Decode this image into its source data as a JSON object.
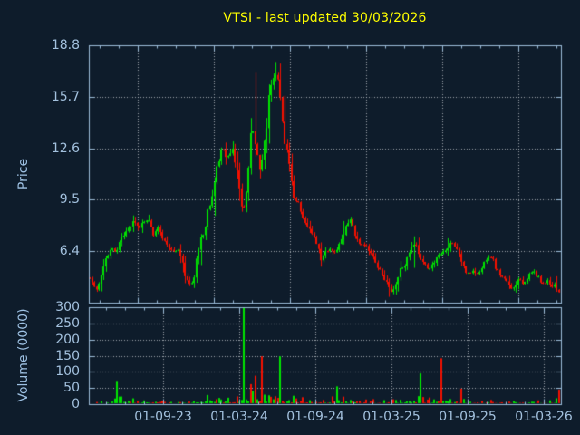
{
  "chart_data": {
    "type": "candlestick",
    "title": "VTSI - last updated 30/03/2026",
    "symbol": "VTSI",
    "last_updated": "30/03/2026",
    "legend_position": "none",
    "grid": true,
    "price_axis": {
      "label": "Price",
      "tick_labels": [
        "18.8",
        "15.7",
        "12.6",
        "9.5",
        "6.4"
      ],
      "ticks": [
        18.8,
        15.7,
        12.6,
        9.5,
        6.4
      ],
      "range": [
        3.3,
        18.8
      ],
      "gridline_prices": [
        15.7,
        12.6,
        9.5,
        6.4
      ]
    },
    "volume_axis": {
      "label": "Volume (0000)",
      "tick_labels": [
        "300",
        "250",
        "200",
        "150",
        "100",
        "50",
        "0"
      ],
      "ticks": [
        300,
        250,
        200,
        150,
        100,
        50,
        0
      ],
      "range": [
        0,
        300
      ],
      "gridline_values": [
        250,
        200,
        150,
        100,
        50
      ]
    },
    "x_axis": {
      "tick_labels": [
        "01-09-23",
        "01-03-24",
        "01-09-24",
        "01-03-25",
        "01-09-25",
        "01-03-26"
      ]
    },
    "colors": {
      "up": "#00e400",
      "down": "#f51000",
      "background": "#0e1c2b",
      "axis": "#9cbcd9",
      "label": "#a3c1de",
      "grid": "#c6ccd2",
      "title": "#ffff00"
    },
    "price_path": [
      [
        0.0,
        4.8
      ],
      [
        0.008,
        4.4
      ],
      [
        0.015,
        4.1
      ],
      [
        0.023,
        5.0
      ],
      [
        0.035,
        5.9
      ],
      [
        0.046,
        6.7
      ],
      [
        0.056,
        6.3
      ],
      [
        0.067,
        7.1
      ],
      [
        0.081,
        7.7
      ],
      [
        0.094,
        8.2
      ],
      [
        0.104,
        7.7
      ],
      [
        0.113,
        8.1
      ],
      [
        0.125,
        8.3
      ],
      [
        0.135,
        7.5
      ],
      [
        0.146,
        7.8
      ],
      [
        0.158,
        7.1
      ],
      [
        0.169,
        6.6
      ],
      [
        0.181,
        6.3
      ],
      [
        0.19,
        6.6
      ],
      [
        0.2,
        5.3
      ],
      [
        0.21,
        4.4
      ],
      [
        0.215,
        4.2
      ],
      [
        0.221,
        4.9
      ],
      [
        0.229,
        5.9
      ],
      [
        0.236,
        6.9
      ],
      [
        0.246,
        8.0
      ],
      [
        0.256,
        9.1
      ],
      [
        0.265,
        10.3
      ],
      [
        0.275,
        12.0
      ],
      [
        0.283,
        12.8
      ],
      [
        0.29,
        11.8
      ],
      [
        0.298,
        12.4
      ],
      [
        0.306,
        12.6
      ],
      [
        0.313,
        11.2
      ],
      [
        0.319,
        9.9
      ],
      [
        0.327,
        8.8
      ],
      [
        0.335,
        10.3
      ],
      [
        0.34,
        12.0
      ],
      [
        0.346,
        13.8
      ],
      [
        0.352,
        13.0
      ],
      [
        0.358,
        11.6
      ],
      [
        0.363,
        11.0
      ],
      [
        0.369,
        12.2
      ],
      [
        0.375,
        13.8
      ],
      [
        0.381,
        15.3
      ],
      [
        0.386,
        16.3
      ],
      [
        0.392,
        16.8
      ],
      [
        0.398,
        17.3
      ],
      [
        0.404,
        16.4
      ],
      [
        0.41,
        14.8
      ],
      [
        0.415,
        13.2
      ],
      [
        0.423,
        11.7
      ],
      [
        0.431,
        10.4
      ],
      [
        0.438,
        9.5
      ],
      [
        0.446,
        9.3
      ],
      [
        0.452,
        8.6
      ],
      [
        0.46,
        8.1
      ],
      [
        0.467,
        7.7
      ],
      [
        0.477,
        7.2
      ],
      [
        0.486,
        6.7
      ],
      [
        0.494,
        5.9
      ],
      [
        0.502,
        6.3
      ],
      [
        0.512,
        6.5
      ],
      [
        0.521,
        6.2
      ],
      [
        0.529,
        6.6
      ],
      [
        0.538,
        7.3
      ],
      [
        0.548,
        8.0
      ],
      [
        0.556,
        8.3
      ],
      [
        0.563,
        7.6
      ],
      [
        0.571,
        7.0
      ],
      [
        0.581,
        6.7
      ],
      [
        0.588,
        6.8
      ],
      [
        0.596,
        6.4
      ],
      [
        0.604,
        6.0
      ],
      [
        0.612,
        5.6
      ],
      [
        0.619,
        5.2
      ],
      [
        0.627,
        4.8
      ],
      [
        0.635,
        4.3
      ],
      [
        0.64,
        3.9
      ],
      [
        0.646,
        4.1
      ],
      [
        0.654,
        4.6
      ],
      [
        0.662,
        5.2
      ],
      [
        0.669,
        5.5
      ],
      [
        0.677,
        5.9
      ],
      [
        0.685,
        6.5
      ],
      [
        0.692,
        7.0
      ],
      [
        0.7,
        6.3
      ],
      [
        0.708,
        5.9
      ],
      [
        0.715,
        5.6
      ],
      [
        0.723,
        5.3
      ],
      [
        0.731,
        5.6
      ],
      [
        0.738,
        5.9
      ],
      [
        0.746,
        6.2
      ],
      [
        0.754,
        6.4
      ],
      [
        0.762,
        6.6
      ],
      [
        0.769,
        7.0
      ],
      [
        0.777,
        6.8
      ],
      [
        0.785,
        6.3
      ],
      [
        0.792,
        5.8
      ],
      [
        0.8,
        5.3
      ],
      [
        0.808,
        5.0
      ],
      [
        0.815,
        5.2
      ],
      [
        0.823,
        4.9
      ],
      [
        0.831,
        5.2
      ],
      [
        0.838,
        5.5
      ],
      [
        0.846,
        5.9
      ],
      [
        0.854,
        6.1
      ],
      [
        0.862,
        5.7
      ],
      [
        0.869,
        5.3
      ],
      [
        0.877,
        4.9
      ],
      [
        0.885,
        4.6
      ],
      [
        0.892,
        4.4
      ],
      [
        0.9,
        4.2
      ],
      [
        0.908,
        4.5
      ],
      [
        0.915,
        4.7
      ],
      [
        0.923,
        4.4
      ],
      [
        0.931,
        4.6
      ],
      [
        0.938,
        5.0
      ],
      [
        0.946,
        5.2
      ],
      [
        0.954,
        4.9
      ],
      [
        0.962,
        4.6
      ],
      [
        0.969,
        4.4
      ],
      [
        0.977,
        4.6
      ],
      [
        0.985,
        4.3
      ],
      [
        0.992,
        4.4
      ],
      [
        1.0,
        3.9
      ]
    ],
    "wick_events": [
      {
        "t": 0.352,
        "high": 17.2,
        "low": 12.1
      },
      {
        "t": 0.398,
        "high": 17.8
      },
      {
        "t": 0.405,
        "high": 17.7
      },
      {
        "t": 0.125,
        "high": 8.6
      },
      {
        "t": 0.692,
        "high": 7.3,
        "low": 5.4
      },
      {
        "t": 0.015,
        "low": 3.95
      },
      {
        "t": 0.64,
        "low": 3.65
      }
    ],
    "volume_envelope": [
      [
        0.0,
        7
      ],
      [
        0.05,
        11
      ],
      [
        0.058,
        55
      ],
      [
        0.07,
        26
      ],
      [
        0.1,
        14
      ],
      [
        0.15,
        10
      ],
      [
        0.19,
        9
      ],
      [
        0.21,
        18
      ],
      [
        0.23,
        30
      ],
      [
        0.25,
        35
      ],
      [
        0.265,
        42
      ],
      [
        0.285,
        32
      ],
      [
        0.3,
        26
      ],
      [
        0.315,
        45
      ],
      [
        0.33,
        58
      ],
      [
        0.345,
        72
      ],
      [
        0.36,
        62
      ],
      [
        0.375,
        56
      ],
      [
        0.39,
        48
      ],
      [
        0.41,
        42
      ],
      [
        0.43,
        36
      ],
      [
        0.45,
        26
      ],
      [
        0.47,
        20
      ],
      [
        0.5,
        15
      ],
      [
        0.52,
        30
      ],
      [
        0.53,
        42
      ],
      [
        0.55,
        18
      ],
      [
        0.58,
        12
      ],
      [
        0.62,
        15
      ],
      [
        0.65,
        20
      ],
      [
        0.68,
        26
      ],
      [
        0.7,
        30
      ],
      [
        0.72,
        24
      ],
      [
        0.75,
        30
      ],
      [
        0.78,
        20
      ],
      [
        0.8,
        15
      ],
      [
        0.83,
        12
      ],
      [
        0.86,
        14
      ],
      [
        0.88,
        10
      ],
      [
        0.9,
        13
      ],
      [
        0.93,
        10
      ],
      [
        0.96,
        13
      ],
      [
        0.98,
        10
      ],
      [
        1.0,
        26
      ]
    ],
    "volume_spikes": [
      {
        "t": 0.3308,
        "v": 302,
        "dir": "up"
      },
      {
        "t": 0.343,
        "v": 62,
        "dir": "down"
      },
      {
        "t": 0.352,
        "v": 88,
        "dir": "down"
      },
      {
        "t": 0.3692,
        "v": 148,
        "dir": "down"
      },
      {
        "t": 0.4077,
        "v": 148,
        "dir": "up"
      },
      {
        "t": 0.0577,
        "v": 72,
        "dir": "up"
      },
      {
        "t": 0.527,
        "v": 55,
        "dir": "up"
      },
      {
        "t": 0.7077,
        "v": 95,
        "dir": "up"
      },
      {
        "t": 0.75,
        "v": 142,
        "dir": "down"
      },
      {
        "t": 0.794,
        "v": 48,
        "dir": "down"
      },
      {
        "t": 0.998,
        "v": 45,
        "dir": "down"
      }
    ]
  }
}
